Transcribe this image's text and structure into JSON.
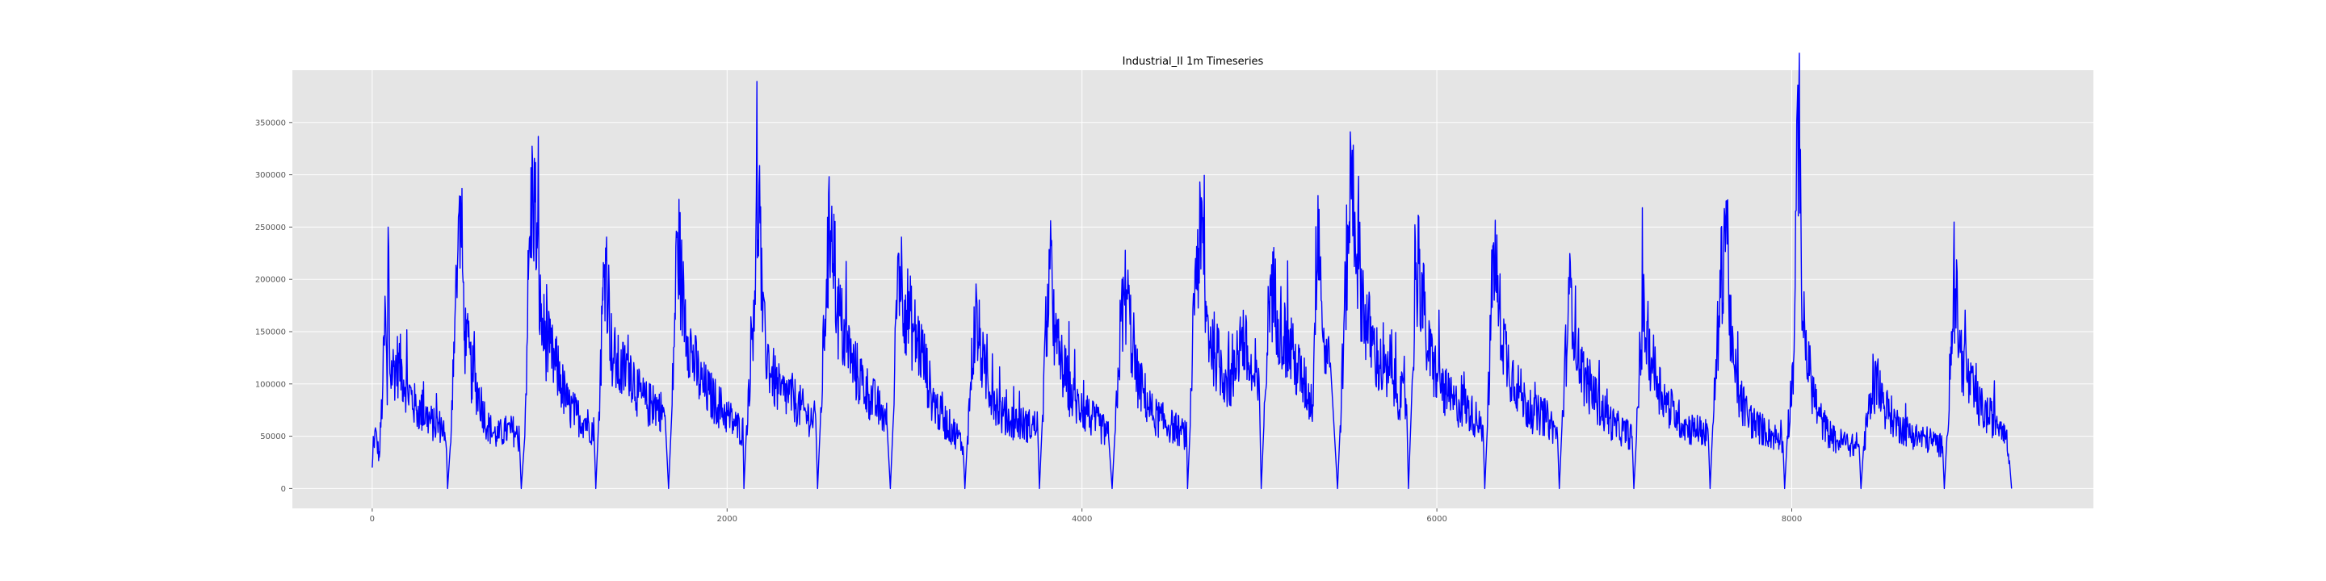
{
  "chart_data": {
    "type": "line",
    "title": "Industrial_II 1m Timeseries",
    "xlabel": "",
    "ylabel": "",
    "xlim": [
      -450,
      9700
    ],
    "ylim": [
      -19000,
      400000
    ],
    "x_ticks": [
      0,
      2000,
      4000,
      6000,
      8000
    ],
    "y_ticks": [
      0,
      50000,
      100000,
      150000,
      200000,
      250000,
      300000,
      350000
    ],
    "grid": true,
    "legend": "none",
    "colors": {
      "series": "#0000ff",
      "plot_bg": "#e5e5e5",
      "grid": "#ffffff"
    },
    "series": [
      {
        "length": 9240,
        "anchors": [
          [
            0,
            20000
          ],
          [
            15,
            55000
          ],
          [
            40,
            30000
          ],
          [
            60,
            100000
          ],
          [
            75,
            170000
          ],
          [
            85,
            80000
          ],
          [
            90,
            250000
          ],
          [
            100,
            110000
          ],
          [
            150,
            120000
          ],
          [
            200,
            95000
          ],
          [
            250,
            75000
          ],
          [
            300,
            70000
          ],
          [
            350,
            60000
          ],
          [
            400,
            60000
          ],
          [
            420,
            30000
          ],
          [
            425,
            0
          ],
          [
            440,
            40000
          ],
          [
            460,
            140000
          ],
          [
            480,
            210000
          ],
          [
            500,
            260000
          ],
          [
            520,
            150000
          ],
          [
            560,
            110000
          ],
          [
            600,
            90000
          ],
          [
            650,
            60000
          ],
          [
            700,
            50000
          ],
          [
            750,
            55000
          ],
          [
            800,
            55000
          ],
          [
            830,
            45000
          ],
          [
            840,
            0
          ],
          [
            860,
            50000
          ],
          [
            880,
            200000
          ],
          [
            905,
            295000
          ],
          [
            930,
            230000
          ],
          [
            950,
            160000
          ],
          [
            1000,
            130000
          ],
          [
            1050,
            110000
          ],
          [
            1100,
            80000
          ],
          [
            1150,
            70000
          ],
          [
            1200,
            65000
          ],
          [
            1250,
            55000
          ],
          [
            1260,
            0
          ],
          [
            1275,
            60000
          ],
          [
            1300,
            180000
          ],
          [
            1315,
            230000
          ],
          [
            1350,
            130000
          ],
          [
            1400,
            110000
          ],
          [
            1450,
            120000
          ],
          [
            1500,
            90000
          ],
          [
            1550,
            80000
          ],
          [
            1600,
            80000
          ],
          [
            1650,
            70000
          ],
          [
            1670,
            0
          ],
          [
            1690,
            80000
          ],
          [
            1720,
            245000
          ],
          [
            1750,
            180000
          ],
          [
            1800,
            130000
          ],
          [
            1850,
            100000
          ],
          [
            1900,
            90000
          ],
          [
            1950,
            80000
          ],
          [
            2000,
            70000
          ],
          [
            2050,
            60000
          ],
          [
            2090,
            55000
          ],
          [
            2095,
            0
          ],
          [
            2110,
            60000
          ],
          [
            2150,
            180000
          ],
          [
            2180,
            290000
          ],
          [
            2200,
            150000
          ],
          [
            2250,
            110000
          ],
          [
            2300,
            90000
          ],
          [
            2350,
            90000
          ],
          [
            2400,
            80000
          ],
          [
            2450,
            70000
          ],
          [
            2500,
            65000
          ],
          [
            2510,
            0
          ],
          [
            2525,
            60000
          ],
          [
            2560,
            200000
          ],
          [
            2590,
            270000
          ],
          [
            2620,
            170000
          ],
          [
            2700,
            120000
          ],
          [
            2800,
            90000
          ],
          [
            2900,
            65000
          ],
          [
            2920,
            0
          ],
          [
            2935,
            60000
          ],
          [
            2965,
            225000
          ],
          [
            3000,
            180000
          ],
          [
            3050,
            150000
          ],
          [
            3100,
            130000
          ],
          [
            3150,
            90000
          ],
          [
            3200,
            70000
          ],
          [
            3300,
            50000
          ],
          [
            3330,
            40000
          ],
          [
            3340,
            0
          ],
          [
            3355,
            50000
          ],
          [
            3380,
            120000
          ],
          [
            3400,
            165000
          ],
          [
            3450,
            110000
          ],
          [
            3500,
            90000
          ],
          [
            3550,
            70000
          ],
          [
            3600,
            65000
          ],
          [
            3700,
            60000
          ],
          [
            3750,
            60000
          ],
          [
            3760,
            0
          ],
          [
            3775,
            60000
          ],
          [
            3800,
            160000
          ],
          [
            3820,
            210000
          ],
          [
            3850,
            140000
          ],
          [
            3900,
            110000
          ],
          [
            3950,
            85000
          ],
          [
            4000,
            75000
          ],
          [
            4100,
            60000
          ],
          [
            4150,
            50000
          ],
          [
            4170,
            0
          ],
          [
            4185,
            50000
          ],
          [
            4220,
            160000
          ],
          [
            4250,
            190000
          ],
          [
            4300,
            110000
          ],
          [
            4350,
            90000
          ],
          [
            4400,
            70000
          ],
          [
            4450,
            65000
          ],
          [
            4500,
            60000
          ],
          [
            4550,
            55000
          ],
          [
            4590,
            50000
          ],
          [
            4595,
            0
          ],
          [
            4610,
            60000
          ],
          [
            4640,
            220000
          ],
          [
            4680,
            235000
          ],
          [
            4700,
            160000
          ],
          [
            4750,
            130000
          ],
          [
            4800,
            110000
          ],
          [
            4850,
            100000
          ],
          [
            4900,
            150000
          ],
          [
            4950,
            110000
          ],
          [
            5000,
            90000
          ],
          [
            5010,
            0
          ],
          [
            5025,
            60000
          ],
          [
            5060,
            200000
          ],
          [
            5100,
            170000
          ],
          [
            5150,
            140000
          ],
          [
            5200,
            120000
          ],
          [
            5250,
            100000
          ],
          [
            5300,
            80000
          ],
          [
            5330,
            280000
          ],
          [
            5360,
            140000
          ],
          [
            5400,
            120000
          ],
          [
            5440,
            0
          ],
          [
            5455,
            60000
          ],
          [
            5500,
            250000
          ],
          [
            5520,
            305000
          ],
          [
            5560,
            210000
          ],
          [
            5600,
            160000
          ],
          [
            5650,
            130000
          ],
          [
            5700,
            110000
          ],
          [
            5750,
            100000
          ],
          [
            5830,
            80000
          ],
          [
            5840,
            0
          ],
          [
            5855,
            70000
          ],
          [
            5880,
            200000
          ],
          [
            5900,
            215000
          ],
          [
            5950,
            130000
          ],
          [
            6000,
            110000
          ],
          [
            6050,
            90000
          ],
          [
            6100,
            80000
          ],
          [
            6150,
            80000
          ],
          [
            6200,
            70000
          ],
          [
            6260,
            60000
          ],
          [
            6270,
            0
          ],
          [
            6285,
            60000
          ],
          [
            6320,
            235000
          ],
          [
            6350,
            170000
          ],
          [
            6400,
            120000
          ],
          [
            6450,
            100000
          ],
          [
            6500,
            80000
          ],
          [
            6550,
            70000
          ],
          [
            6600,
            70000
          ],
          [
            6650,
            60000
          ],
          [
            6680,
            50000
          ],
          [
            6690,
            0
          ],
          [
            6705,
            60000
          ],
          [
            6740,
            170000
          ],
          [
            6760,
            190000
          ],
          [
            6800,
            120000
          ],
          [
            6850,
            100000
          ],
          [
            6900,
            85000
          ],
          [
            6950,
            70000
          ],
          [
            7000,
            60000
          ],
          [
            7050,
            55000
          ],
          [
            7100,
            50000
          ],
          [
            7110,
            0
          ],
          [
            7125,
            50000
          ],
          [
            7160,
            170000
          ],
          [
            7200,
            130000
          ],
          [
            7250,
            100000
          ],
          [
            7300,
            80000
          ],
          [
            7350,
            70000
          ],
          [
            7400,
            60000
          ],
          [
            7450,
            55000
          ],
          [
            7500,
            55000
          ],
          [
            7530,
            50000
          ],
          [
            7540,
            0
          ],
          [
            7555,
            60000
          ],
          [
            7590,
            165000
          ],
          [
            7630,
            275000
          ],
          [
            7660,
            130000
          ],
          [
            7700,
            90000
          ],
          [
            7750,
            70000
          ],
          [
            7800,
            60000
          ],
          [
            7850,
            55000
          ],
          [
            7900,
            50000
          ],
          [
            7950,
            45000
          ],
          [
            7960,
            0
          ],
          [
            7975,
            50000
          ],
          [
            8010,
            120000
          ],
          [
            8040,
            380000
          ],
          [
            8060,
            160000
          ],
          [
            8100,
            110000
          ],
          [
            8150,
            70000
          ],
          [
            8200,
            55000
          ],
          [
            8250,
            45000
          ],
          [
            8300,
            45000
          ],
          [
            8350,
            40000
          ],
          [
            8380,
            40000
          ],
          [
            8390,
            0
          ],
          [
            8405,
            40000
          ],
          [
            8440,
            80000
          ],
          [
            8480,
            105000
          ],
          [
            8520,
            80000
          ],
          [
            8600,
            60000
          ],
          [
            8700,
            50000
          ],
          [
            8800,
            45000
          ],
          [
            8850,
            40000
          ],
          [
            8860,
            0
          ],
          [
            8875,
            50000
          ],
          [
            8900,
            150000
          ],
          [
            8920,
            190000
          ],
          [
            8950,
            130000
          ],
          [
            9000,
            100000
          ],
          [
            9050,
            80000
          ],
          [
            9100,
            70000
          ],
          [
            9150,
            65000
          ],
          [
            9200,
            60000
          ],
          [
            9230,
            20000
          ],
          [
            9239,
            0
          ]
        ]
      }
    ]
  }
}
